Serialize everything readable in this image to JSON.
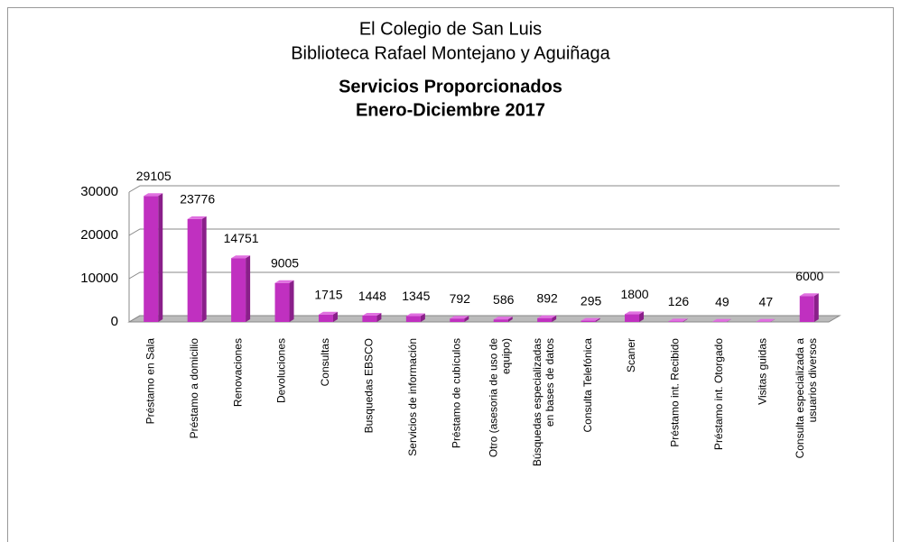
{
  "chart_data": {
    "type": "bar3d",
    "title": [
      "El Colegio de San Luis",
      "Biblioteca Rafael Montejano y Aguiñaga",
      "Servicios Proporcionados",
      "Enero-Diciembre 2017"
    ],
    "categories": [
      "Préstamo en Sala",
      "Préstamo a domicilio",
      "Renovaciones",
      "Devoluciones",
      "Consultas",
      "Busquedas  EBSCO",
      "Servicios de información",
      "Préstamo de cubículos",
      "Otro (asesoria de uso de equipo)",
      "Búsquedas especializadas en bases de datos",
      "Consulta Telefónica",
      "Scaner",
      "Préstamo int. Recibido",
      "Préstamo int. Otorgado",
      "Visitas guidas",
      "Consulta especializada a usuarios diversos"
    ],
    "values": [
      29105,
      23776,
      14751,
      9005,
      1715,
      1448,
      1345,
      792,
      586,
      892,
      295,
      1800,
      126,
      49,
      47,
      6000
    ],
    "color": "#c030c0",
    "ylim": [
      0,
      30000
    ],
    "yticks": [
      0,
      10000,
      20000,
      30000
    ],
    "grid": true
  }
}
